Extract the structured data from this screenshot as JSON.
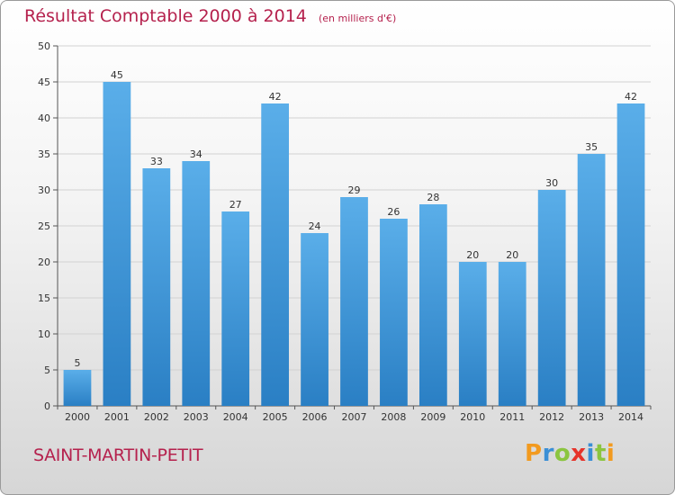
{
  "chart_data": {
    "type": "bar",
    "title": "Résultat Comptable 2000 à 2014",
    "subtitle": "(en milliers d'€)",
    "categories": [
      "2000",
      "2001",
      "2002",
      "2003",
      "2004",
      "2005",
      "2006",
      "2007",
      "2008",
      "2009",
      "2010",
      "2011",
      "2012",
      "2013",
      "2014"
    ],
    "values": [
      5,
      45,
      33,
      34,
      27,
      42,
      24,
      29,
      26,
      28,
      20,
      20,
      30,
      35,
      42
    ],
    "ylim": [
      0,
      50
    ],
    "yticks": [
      0,
      5,
      10,
      15,
      20,
      25,
      30,
      35,
      40,
      45,
      50
    ],
    "grid": true,
    "bar_color_top": "#5aaee9",
    "bar_color_bottom": "#2a7fc4"
  },
  "footer": {
    "town": "SAINT-MARTIN-PETIT",
    "logo_text": "Proxiti"
  },
  "colors": {
    "title": "#b5214d",
    "logo_letters": [
      "#f29a1f",
      "#3a8fd6",
      "#8bc540",
      "#e6332a",
      "#3a8fd6",
      "#8bc540",
      "#f29a1f"
    ]
  }
}
